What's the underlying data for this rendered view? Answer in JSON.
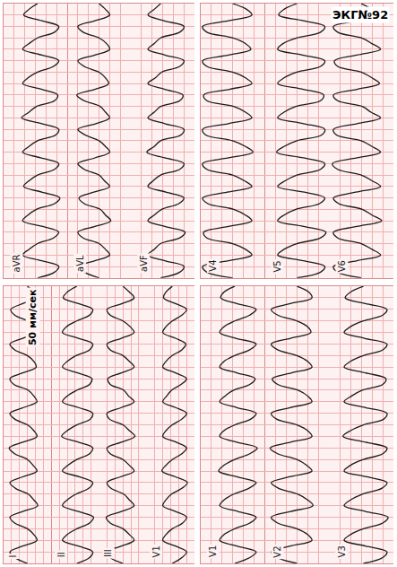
{
  "title": "ЭКГ№92",
  "annotations": [
    "50 мм/сек"
  ],
  "chart_data": [
    {
      "type": "line",
      "grid": true,
      "tick_labels": false,
      "color": "#1c1c1c",
      "line_style": "solid",
      "xlim": [
        0,
        2.4
      ],
      "xticks": [
        0,
        0.1,
        0.2,
        0.3,
        0.4,
        0.5,
        0.6,
        0.7,
        0.8,
        0.9,
        1,
        1.1,
        1.2,
        1.3,
        1.4,
        1.5,
        1.6,
        1.7,
        1.8,
        1.9,
        2,
        2.1,
        2.2,
        2.3,
        2.4
      ],
      "ylim": [
        -1.5,
        1.5
      ],
      "yticks": [
        -1.5,
        -1,
        -0.5,
        0,
        0.5,
        1,
        1.5
      ],
      "x": [
        0,
        0.05,
        0.1,
        0.15,
        0.2,
        0.25,
        0.3,
        0.35,
        0.4,
        0.45,
        0.5,
        0.55,
        0.6,
        0.65,
        0.7,
        0.75,
        0.8,
        0.85,
        0.9,
        0.95,
        1,
        1.05,
        1.1,
        1.15,
        1.2,
        1.25,
        1.3,
        1.35,
        1.4,
        1.45,
        1.5,
        1.55,
        1.6,
        1.65,
        1.7,
        1.75,
        1.8,
        1.85,
        1.9,
        1.95,
        2,
        2.05,
        2.1,
        2.15,
        2.2,
        2.25,
        2.3,
        2.35,
        2.4
      ],
      "series": [
        {
          "name": "aVR",
          "values": [
            0.1,
            0.9,
            1.1,
            0.3,
            -0.6,
            -0.3,
            0.1,
            0.85,
            1.1,
            0.35,
            -0.6,
            -0.35,
            0.05,
            0.9,
            1.15,
            0.3,
            -0.55,
            -0.3,
            0.1,
            0.9,
            1.1,
            0.25,
            -0.6,
            -0.3,
            0.1,
            0.95,
            1.1,
            0.3,
            -0.65,
            -0.3,
            0.05,
            0.9,
            1.05,
            0.3,
            -0.6,
            -0.35,
            0.1,
            0.85,
            1.1,
            0.3,
            -0.6,
            -0.3,
            0.1,
            0.9,
            1.1,
            0.3,
            -0.55,
            -0.3,
            0.1
          ]
        },
        {
          "name": "aVL",
          "values": [
            0,
            -0.7,
            -1,
            -0.2,
            0.5,
            0.3,
            0,
            -0.75,
            -1,
            -0.2,
            0.55,
            0.3,
            0.05,
            -0.7,
            -0.95,
            -0.25,
            0.5,
            0.25,
            0,
            -0.7,
            -1,
            -0.2,
            0.5,
            0.3,
            0,
            -0.65,
            -1,
            -0.15,
            0.5,
            0.3,
            0.05,
            -0.7,
            -1.05,
            -0.2,
            0.45,
            0.3,
            0,
            -0.7,
            -1,
            -0.2,
            0.5,
            0.35,
            0,
            -0.75,
            -1,
            -0.2,
            0.5,
            0.3,
            0
          ]
        },
        {
          "name": "aVF",
          "values": [
            -0.1,
            0.8,
            1,
            0.1,
            -0.7,
            -0.4,
            -0.1,
            0.8,
            1.05,
            0.1,
            -0.7,
            -0.4,
            -0.05,
            0.75,
            1,
            0.15,
            -0.7,
            -0.45,
            -0.1,
            0.8,
            1,
            0.1,
            -0.75,
            -0.4,
            -0.1,
            0.85,
            1,
            0.1,
            -0.7,
            -0.4,
            -0.1,
            0.8,
            0.95,
            0.1,
            -0.7,
            -0.35,
            -0.05,
            0.8,
            1,
            0.1,
            -0.7,
            -0.4,
            -0.1,
            0.8,
            1,
            0.05,
            -0.7,
            -0.4,
            -0.1
          ]
        }
      ]
    },
    {
      "type": "line",
      "grid": true,
      "tick_labels": false,
      "color": "#1c1c1c",
      "line_style": "solid",
      "xlim": [
        0,
        2.4
      ],
      "xticks": [
        0,
        0.1,
        0.2,
        0.3,
        0.4,
        0.5,
        0.6,
        0.7,
        0.8,
        0.9,
        1,
        1.1,
        1.2,
        1.3,
        1.4,
        1.5,
        1.6,
        1.7,
        1.8,
        1.9,
        2,
        2.1,
        2.2,
        2.3,
        2.4
      ],
      "ylim": [
        -1.5,
        1.5
      ],
      "yticks": [
        -1.5,
        -1,
        -0.5,
        0,
        0.5,
        1,
        1.5
      ],
      "x": [
        0,
        0.05,
        0.1,
        0.15,
        0.2,
        0.25,
        0.3,
        0.35,
        0.4,
        0.45,
        0.5,
        0.55,
        0.6,
        0.65,
        0.7,
        0.75,
        0.8,
        0.85,
        0.9,
        0.95,
        1,
        1.05,
        1.1,
        1.15,
        1.2,
        1.25,
        1.3,
        1.35,
        1.4,
        1.45,
        1.5,
        1.55,
        1.6,
        1.65,
        1.7,
        1.75,
        1.8,
        1.85,
        1.9,
        1.95,
        2,
        2.05,
        2.1,
        2.15,
        2.2,
        2.25,
        2.3,
        2.35,
        2.4
      ],
      "series": [
        {
          "name": "I",
          "values": [
            0,
            -0.8,
            -1.1,
            -0.3,
            0.6,
            0.4,
            0,
            -0.8,
            -1.1,
            -0.3,
            0.65,
            0.4,
            0.05,
            -0.75,
            -1.1,
            -0.3,
            0.6,
            0.35,
            0,
            -0.8,
            -1.15,
            -0.3,
            0.6,
            0.4,
            0,
            -0.8,
            -1.1,
            -0.25,
            0.6,
            0.4,
            0.05,
            -0.85,
            -1.1,
            -0.3,
            0.55,
            0.4,
            0,
            -0.8,
            -1.1,
            -0.3,
            0.6,
            0.45,
            0,
            -0.8,
            -1.05,
            -0.3,
            0.6,
            0.4,
            0
          ]
        },
        {
          "name": "II",
          "values": [
            0.1,
            0.9,
            1.1,
            0.2,
            -0.8,
            -0.5,
            0.1,
            0.9,
            1.15,
            0.2,
            -0.8,
            -0.5,
            0.05,
            0.85,
            1.1,
            0.25,
            -0.8,
            -0.45,
            0.1,
            0.9,
            1.1,
            0.2,
            -0.85,
            -0.5,
            0.1,
            0.95,
            1.1,
            0.2,
            -0.8,
            -0.5,
            0.1,
            0.9,
            1.05,
            0.15,
            -0.8,
            -0.5,
            0.05,
            0.9,
            1.1,
            0.2,
            -0.8,
            -0.55,
            0.1,
            0.9,
            1.1,
            0.2,
            -0.75,
            -0.5,
            0.1
          ]
        },
        {
          "name": "III",
          "values": [
            0,
            -0.8,
            -1,
            -0.1,
            0.7,
            0.4,
            0,
            -0.8,
            -1.05,
            -0.1,
            0.7,
            0.4,
            0.05,
            -0.75,
            -1,
            -0.15,
            0.7,
            0.4,
            0,
            -0.8,
            -1,
            -0.1,
            0.75,
            0.4,
            0,
            -0.85,
            -1,
            -0.1,
            0.7,
            0.35,
            0.05,
            -0.8,
            -0.95,
            -0.1,
            0.7,
            0.4,
            0,
            -0.8,
            -1,
            -0.1,
            0.7,
            0.45,
            0,
            -0.8,
            -1,
            -0.05,
            0.7,
            0.4,
            0
          ]
        },
        {
          "name": "V1",
          "values": [
            0.1,
            0.7,
            1,
            0.3,
            -0.5,
            -0.3,
            0.1,
            0.75,
            1,
            0.3,
            -0.5,
            -0.3,
            0.05,
            0.7,
            1.05,
            0.3,
            -0.55,
            -0.3,
            0.1,
            0.7,
            1,
            0.35,
            -0.5,
            -0.3,
            0.1,
            0.7,
            1,
            0.3,
            -0.5,
            -0.25,
            0.05,
            0.65,
            1,
            0.3,
            -0.5,
            -0.3,
            0.1,
            0.7,
            0.95,
            0.3,
            -0.5,
            -0.3,
            0.1,
            0.7,
            1,
            0.3,
            -0.45,
            -0.3,
            0.1
          ]
        }
      ]
    },
    {
      "type": "line",
      "grid": true,
      "tick_labels": false,
      "color": "#1c1c1c",
      "line_style": "solid",
      "xlim": [
        0,
        2.4
      ],
      "xticks": [
        0,
        0.1,
        0.2,
        0.3,
        0.4,
        0.5,
        0.6,
        0.7,
        0.8,
        0.9,
        1,
        1.1,
        1.2,
        1.3,
        1.4,
        1.5,
        1.6,
        1.7,
        1.8,
        1.9,
        2,
        2.1,
        2.2,
        2.3,
        2.4
      ],
      "ylim": [
        -1.5,
        1.5
      ],
      "yticks": [
        -1.5,
        -1,
        -0.5,
        0,
        0.5,
        1,
        1.5
      ],
      "x": [
        0,
        0.05,
        0.1,
        0.15,
        0.2,
        0.25,
        0.3,
        0.35,
        0.4,
        0.45,
        0.5,
        0.55,
        0.6,
        0.65,
        0.7,
        0.75,
        0.8,
        0.85,
        0.9,
        0.95,
        1,
        1.05,
        1.1,
        1.15,
        1.2,
        1.25,
        1.3,
        1.35,
        1.4,
        1.45,
        1.5,
        1.55,
        1.6,
        1.65,
        1.7,
        1.75,
        1.8,
        1.85,
        1.9,
        1.95,
        2,
        2.05,
        2.1,
        2.15,
        2.2,
        2.25,
        2.3,
        2.35,
        2.4
      ],
      "series": [
        {
          "name": "V4",
          "values": [
            0,
            -1.2,
            -1.4,
            -0.2,
            0.9,
            0.6,
            0,
            -1.2,
            -1.35,
            -0.2,
            0.9,
            0.6,
            0.05,
            -1.15,
            -1.4,
            -0.25,
            0.9,
            0.55,
            0,
            -1.2,
            -1.4,
            -0.2,
            0.95,
            0.6,
            0,
            -1.25,
            -1.4,
            -0.2,
            0.9,
            0.6,
            0.05,
            -1.2,
            -1.35,
            -0.15,
            0.9,
            0.6,
            0,
            -1.2,
            -1.4,
            -0.2,
            0.85,
            0.6,
            0,
            -1.2,
            -1.4,
            -0.2,
            0.9,
            0.65,
            0
          ]
        },
        {
          "name": "V5",
          "values": [
            0,
            1.1,
            1.3,
            0.3,
            -0.9,
            -0.6,
            0,
            1.1,
            1.35,
            0.3,
            -0.9,
            -0.6,
            -0.05,
            1.05,
            1.3,
            0.35,
            -0.9,
            -0.55,
            0,
            1.1,
            1.3,
            0.3,
            -0.95,
            -0.6,
            0,
            1.15,
            1.3,
            0.3,
            -0.9,
            -0.6,
            -0.05,
            1.1,
            1.25,
            0.3,
            -0.9,
            -0.6,
            0,
            1.1,
            1.3,
            0.25,
            -0.9,
            -0.65,
            0,
            1.1,
            1.3,
            0.3,
            -0.85,
            -0.6,
            0
          ]
        },
        {
          "name": "V6",
          "values": [
            0,
            -1.1,
            -1.3,
            -0.2,
            0.9,
            0.5,
            0,
            -1.1,
            -1.3,
            -0.2,
            0.95,
            0.5,
            0.05,
            -1.05,
            -1.3,
            -0.25,
            0.9,
            0.5,
            0,
            -1.1,
            -1.35,
            -0.2,
            0.9,
            0.5,
            0,
            -1.15,
            -1.3,
            -0.2,
            0.9,
            0.45,
            0.05,
            -1.1,
            -1.3,
            -0.2,
            0.85,
            0.5,
            0,
            -1.1,
            -1.25,
            -0.2,
            0.9,
            0.5,
            0,
            -1.1,
            -1.3,
            -0.15,
            0.9,
            0.5,
            0
          ]
        }
      ]
    },
    {
      "type": "line",
      "grid": true,
      "tick_labels": false,
      "color": "#1c1c1c",
      "line_style": "solid",
      "xlim": [
        0,
        2.4
      ],
      "xticks": [
        0,
        0.1,
        0.2,
        0.3,
        0.4,
        0.5,
        0.6,
        0.7,
        0.8,
        0.9,
        1,
        1.1,
        1.2,
        1.3,
        1.4,
        1.5,
        1.6,
        1.7,
        1.8,
        1.9,
        2,
        2.1,
        2.2,
        2.3,
        2.4
      ],
      "ylim": [
        -1.5,
        1.5
      ],
      "yticks": [
        -1.5,
        -1,
        -0.5,
        0,
        0.5,
        1,
        1.5
      ],
      "x": [
        0,
        0.05,
        0.1,
        0.15,
        0.2,
        0.25,
        0.3,
        0.35,
        0.4,
        0.45,
        0.5,
        0.55,
        0.6,
        0.65,
        0.7,
        0.75,
        0.8,
        0.85,
        0.9,
        0.95,
        1,
        1.05,
        1.1,
        1.15,
        1.2,
        1.25,
        1.3,
        1.35,
        1.4,
        1.45,
        1.5,
        1.55,
        1.6,
        1.65,
        1.7,
        1.75,
        1.8,
        1.85,
        1.9,
        1.95,
        2,
        2.05,
        2.1,
        2.15,
        2.2,
        2.25,
        2.3,
        2.35,
        2.4
      ],
      "series": [
        {
          "name": "V1",
          "values": [
            0.1,
            0.8,
            1.1,
            0.2,
            -0.6,
            -0.4,
            0.1,
            0.8,
            1.1,
            0.25,
            -0.6,
            -0.4,
            0.05,
            0.75,
            1.1,
            0.2,
            -0.65,
            -0.4,
            0.1,
            0.8,
            1.15,
            0.2,
            -0.6,
            -0.4,
            0.1,
            0.85,
            1.1,
            0.2,
            -0.6,
            -0.35,
            0.05,
            0.8,
            1.05,
            0.2,
            -0.6,
            -0.4,
            0.1,
            0.8,
            1.1,
            0.15,
            -0.6,
            -0.4,
            0.1,
            0.8,
            1.1,
            0.2,
            -0.55,
            -0.4,
            0.1
          ]
        },
        {
          "name": "V2",
          "values": [
            0,
            -0.9,
            -1.2,
            -0.3,
            0.7,
            0.5,
            0,
            -0.9,
            -1.2,
            -0.3,
            0.75,
            0.5,
            0.05,
            -0.85,
            -1.2,
            -0.35,
            0.7,
            0.45,
            0,
            -0.9,
            -1.25,
            -0.3,
            0.7,
            0.5,
            0,
            -0.95,
            -1.2,
            -0.3,
            0.7,
            0.5,
            0.05,
            -0.9,
            -1.15,
            -0.25,
            0.7,
            0.5,
            0,
            -0.9,
            -1.2,
            -0.3,
            0.65,
            0.5,
            0,
            -0.9,
            -1.2,
            -0.3,
            0.7,
            0.55,
            0
          ]
        },
        {
          "name": "V3",
          "values": [
            0.1,
            1,
            1.2,
            0.2,
            -0.8,
            -0.5,
            0.1,
            1,
            1.25,
            0.2,
            -0.8,
            -0.5,
            0.05,
            0.95,
            1.2,
            0.25,
            -0.8,
            -0.5,
            0.1,
            1,
            1.2,
            0.2,
            -0.85,
            -0.5,
            0.1,
            1.05,
            1.2,
            0.2,
            -0.8,
            -0.45,
            0.05,
            1,
            1.15,
            0.2,
            -0.8,
            -0.5,
            0.1,
            1,
            1.2,
            0.15,
            -0.8,
            -0.5,
            0.1,
            1,
            1.2,
            0.2,
            -0.75,
            -0.5,
            0.1
          ]
        }
      ]
    }
  ]
}
